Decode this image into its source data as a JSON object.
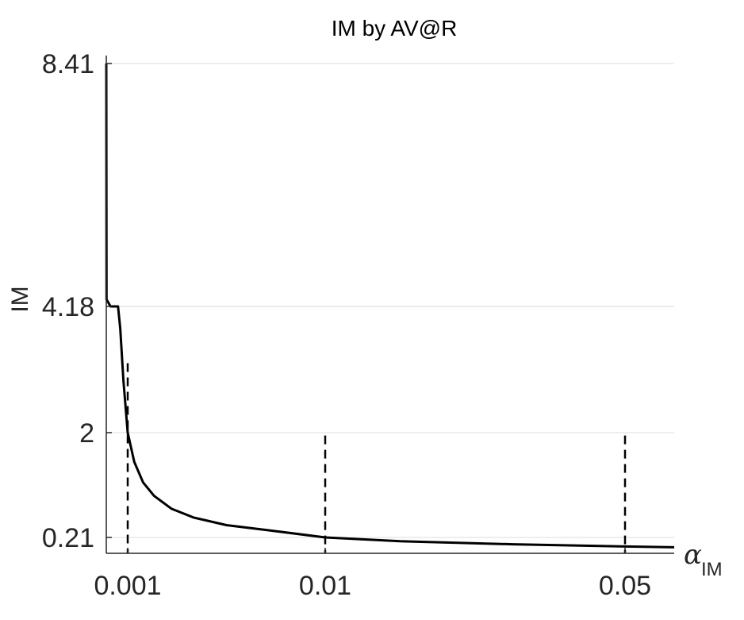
{
  "chart_data": {
    "type": "line",
    "title": "IM by AV@R",
    "ylabel": "IM",
    "xlabel": {
      "symbol": "α",
      "subscript": "IM"
    },
    "xlim": [
      0.0,
      0.057
    ],
    "ylim": [
      0.0,
      8.41
    ],
    "x_ticks": [
      {
        "value": 0.001,
        "label": "0.001"
      },
      {
        "value": 0.01,
        "label": "0.01"
      },
      {
        "value": 0.05,
        "label": "0.05"
      }
    ],
    "y_ticks": [
      {
        "value": 0.21,
        "label": "0.21"
      },
      {
        "value": 2.0,
        "label": "2"
      },
      {
        "value": 4.18,
        "label": "4.18"
      },
      {
        "value": 8.41,
        "label": "8.41"
      }
    ],
    "x_scale": "nonuniform",
    "y_scale": "nonuniform",
    "grid": "horizontal",
    "series": [
      {
        "style": "solid",
        "color": "#000000",
        "points": [
          {
            "x": 0.0,
            "y": 8.41
          },
          {
            "x": 1e-05,
            "y": 4.3
          },
          {
            "x": 0.0002,
            "y": 4.18
          },
          {
            "x": 0.00055,
            "y": 4.18
          },
          {
            "x": 0.00065,
            "y": 3.8
          },
          {
            "x": 0.0008,
            "y": 2.9
          },
          {
            "x": 0.001,
            "y": 2.0
          },
          {
            "x": 0.0013,
            "y": 1.5
          },
          {
            "x": 0.0017,
            "y": 1.15
          },
          {
            "x": 0.0022,
            "y": 0.92
          },
          {
            "x": 0.003,
            "y": 0.7
          },
          {
            "x": 0.004,
            "y": 0.55
          },
          {
            "x": 0.0055,
            "y": 0.42
          },
          {
            "x": 0.0075,
            "y": 0.33
          },
          {
            "x": 0.01,
            "y": 0.21
          },
          {
            "x": 0.02,
            "y": 0.16
          },
          {
            "x": 0.035,
            "y": 0.12
          },
          {
            "x": 0.05,
            "y": 0.09
          },
          {
            "x": 0.057,
            "y": 0.08
          }
        ]
      }
    ],
    "reference_lines": [
      {
        "x": 0.001,
        "y_top": 3.2,
        "style": "dashed"
      },
      {
        "x": 0.01,
        "y_top": 1.95,
        "style": "dashed"
      },
      {
        "x": 0.05,
        "y_top": 1.95,
        "style": "dashed"
      }
    ]
  }
}
